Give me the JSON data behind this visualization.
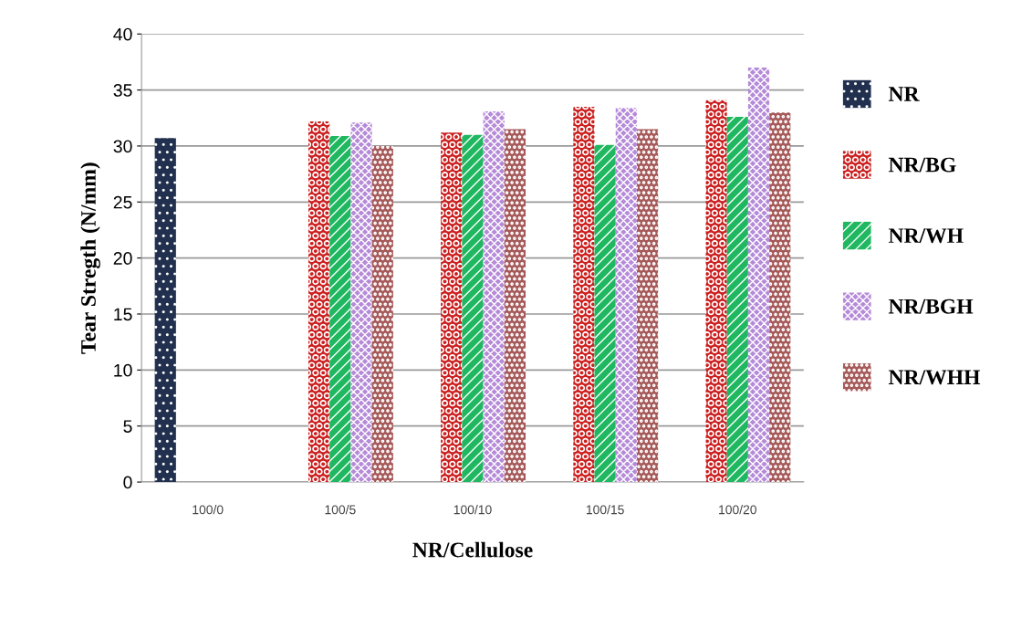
{
  "chart_data": {
    "type": "bar",
    "xlabel": "NR/Cellulose",
    "ylabel": "Tear Stregth (N/mm)",
    "categories": [
      "100/0",
      "100/5",
      "100/10",
      "100/15",
      "100/20"
    ],
    "series": [
      {
        "name": "NR",
        "color": "#22304f",
        "values": [
          30.7,
          null,
          null,
          null,
          null
        ]
      },
      {
        "name": "NR/BG",
        "color": "#cc1f1f",
        "values": [
          null,
          32.2,
          31.2,
          33.5,
          34.1
        ]
      },
      {
        "name": "NR/WH",
        "color": "#1fb860",
        "values": [
          null,
          30.9,
          31.0,
          30.1,
          32.6
        ]
      },
      {
        "name": "NR/BGH",
        "color": "#b58ad8",
        "values": [
          null,
          32.1,
          33.1,
          33.4,
          37.0
        ]
      },
      {
        "name": "NR/WHH",
        "color": "#a65a5a",
        "values": [
          null,
          30.0,
          31.5,
          31.5,
          33.0
        ]
      }
    ],
    "ylim": [
      0,
      40
    ],
    "yticks": [
      0,
      5,
      10,
      15,
      20,
      25,
      30,
      35,
      40
    ],
    "grid": "y",
    "legend": "right"
  }
}
